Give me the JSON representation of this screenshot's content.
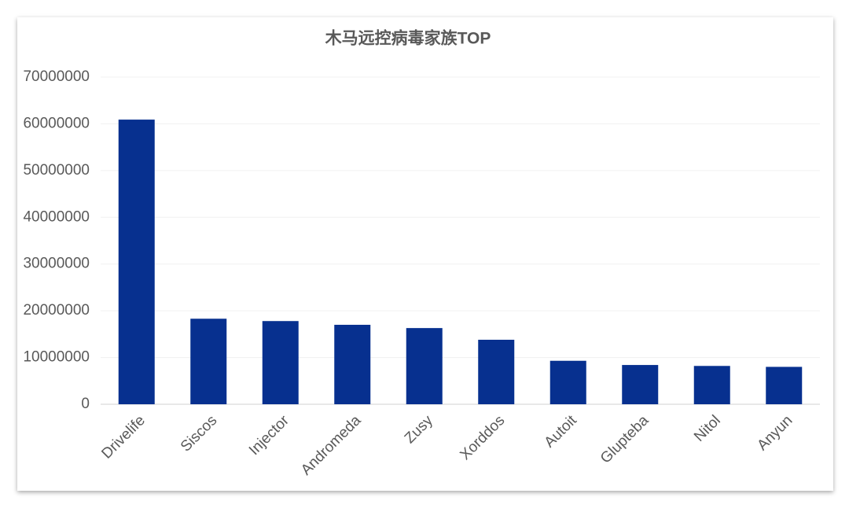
{
  "chart_data": {
    "type": "bar",
    "title": "木马远控病毒家族TOP",
    "categories": [
      "Drivelife",
      "Siscos",
      "Injector",
      "Andromeda",
      "Zusy",
      "Xorddos",
      "Autoit",
      "Glupteba",
      "Nitol",
      "Anyun"
    ],
    "values": [
      60900000,
      18300000,
      17800000,
      17000000,
      16300000,
      13800000,
      9300000,
      8400000,
      8200000,
      8000000
    ],
    "color": "#07308f",
    "ylim": [
      0,
      70000000
    ],
    "yticks": [
      0,
      10000000,
      20000000,
      30000000,
      40000000,
      50000000,
      60000000,
      70000000
    ],
    "grid": true
  }
}
